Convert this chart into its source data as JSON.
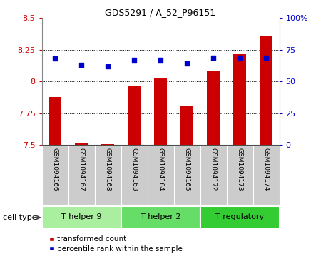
{
  "title": "GDS5291 / A_52_P96151",
  "samples": [
    "GSM1094166",
    "GSM1094167",
    "GSM1094168",
    "GSM1094163",
    "GSM1094164",
    "GSM1094165",
    "GSM1094172",
    "GSM1094173",
    "GSM1094174"
  ],
  "transformed_counts": [
    7.88,
    7.52,
    7.51,
    7.97,
    8.03,
    7.81,
    8.08,
    8.22,
    8.36
  ],
  "percentile_ranks": [
    68,
    63,
    62,
    67,
    67,
    64,
    69,
    69,
    69
  ],
  "ylim_left": [
    7.5,
    8.5
  ],
  "ylim_right": [
    0,
    100
  ],
  "yticks_left": [
    7.5,
    7.75,
    8.0,
    8.25,
    8.5
  ],
  "yticks_right": [
    0,
    25,
    50,
    75,
    100
  ],
  "ytick_labels_left": [
    "7.5",
    "7.75",
    "8",
    "8.25",
    "8.5"
  ],
  "ytick_labels_right": [
    "0",
    "25",
    "50",
    "75",
    "100%"
  ],
  "bar_color": "#cc0000",
  "dot_color": "#0000cc",
  "cell_types": [
    {
      "label": "T helper 9",
      "indices": [
        0,
        1,
        2
      ],
      "color": "#aaeea0"
    },
    {
      "label": "T helper 2",
      "indices": [
        3,
        4,
        5
      ],
      "color": "#66dd66"
    },
    {
      "label": "T regulatory",
      "indices": [
        6,
        7,
        8
      ],
      "color": "#33cc33"
    }
  ],
  "cell_type_label": "cell type",
  "legend_bar_label": "transformed count",
  "legend_dot_label": "percentile rank within the sample",
  "bg_color": "#ffffff",
  "sample_bg": "#cccccc",
  "left_axis_color": "#cc0000",
  "right_axis_color": "#0000cc"
}
